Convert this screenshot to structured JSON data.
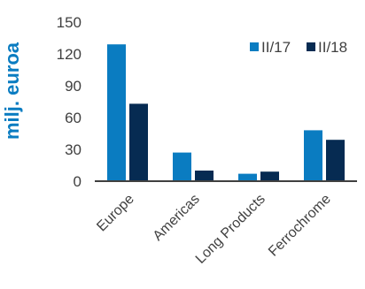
{
  "chart_data": {
    "type": "bar",
    "categories": [
      "Europe",
      "Americas",
      "Long Products",
      "Ferrochrome"
    ],
    "series": [
      {
        "name": "II/17",
        "values": [
          129,
          27,
          7,
          48
        ],
        "color": "#0a7cc1"
      },
      {
        "name": "II/18",
        "values": [
          73,
          10,
          9,
          39
        ],
        "color": "#062b52"
      }
    ],
    "title": "",
    "xlabel": "",
    "ylabel": "milj. euroa",
    "ylim": [
      0,
      150
    ],
    "yticks": [
      0,
      30,
      60,
      90,
      120,
      150
    ],
    "grid": false,
    "legend_position": "top-right"
  }
}
